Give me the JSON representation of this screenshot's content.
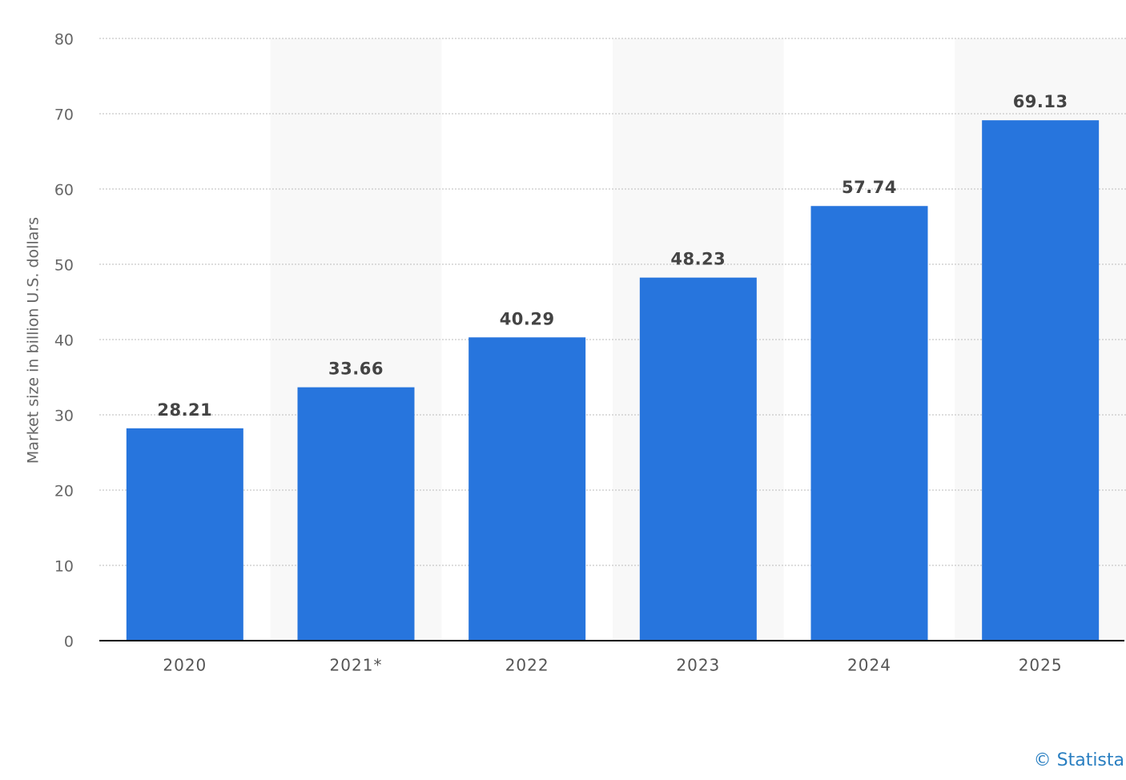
{
  "chart_data": {
    "type": "bar",
    "y_label": "Market size in billion U.S. dollars",
    "categories": [
      "2020",
      "2021*",
      "2022",
      "2023",
      "2024",
      "2025"
    ],
    "values": [
      28.21,
      33.66,
      40.29,
      48.23,
      57.74,
      69.13
    ],
    "color": "#2775dd",
    "ylim": [
      0,
      80
    ],
    "yticks": [
      0,
      10,
      20,
      30,
      40,
      50,
      60,
      70,
      80
    ],
    "grid": true,
    "credit": "© Statista"
  }
}
